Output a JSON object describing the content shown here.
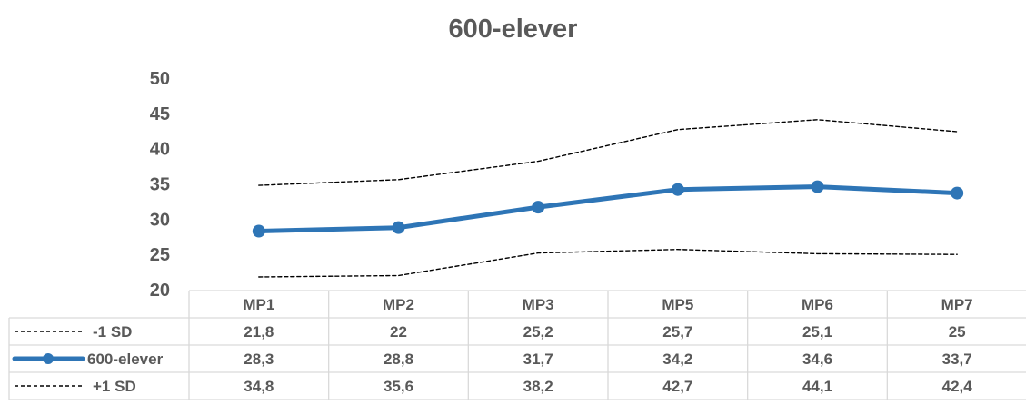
{
  "chart_data": {
    "type": "line",
    "title": "600-elever",
    "categories": [
      "MP1",
      "MP2",
      "MP3",
      "MP5",
      "MP6",
      "MP7"
    ],
    "ylim": [
      20,
      50
    ],
    "yticks": [
      20,
      25,
      30,
      35,
      40,
      45,
      50
    ],
    "ytick_labels": [
      "20",
      "25",
      "30",
      "35",
      "40",
      "45",
      "50"
    ],
    "grid": false,
    "legend": "data-table",
    "series": [
      {
        "name": "-1 SD",
        "values": [
          21.8,
          22,
          25.2,
          25.7,
          25.1,
          25
        ],
        "labels": [
          "21,8",
          "22",
          "25,2",
          "25,7",
          "25,1",
          "25"
        ],
        "color": "#000000",
        "style": "dashed"
      },
      {
        "name": "600-elever",
        "values": [
          28.3,
          28.8,
          31.7,
          34.2,
          34.6,
          33.7
        ],
        "labels": [
          "28,3",
          "28,8",
          "31,7",
          "34,2",
          "34,6",
          "33,7"
        ],
        "color": "#2E75B6",
        "style": "solid-markers"
      },
      {
        "name": "+1 SD",
        "values": [
          34.8,
          35.6,
          38.2,
          42.7,
          44.1,
          42.4
        ],
        "labels": [
          "34,8",
          "35,6",
          "38,2",
          "42,7",
          "44,1",
          "42,4"
        ],
        "color": "#000000",
        "style": "dashed"
      }
    ]
  }
}
